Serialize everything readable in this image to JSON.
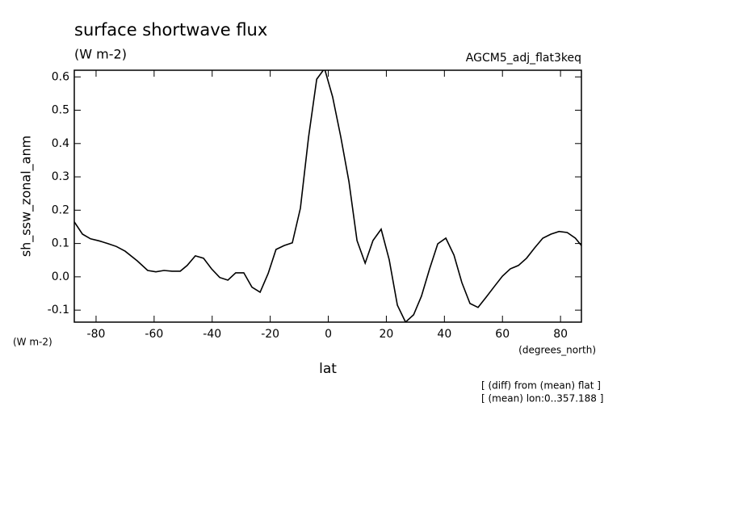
{
  "chart_data": {
    "type": "line",
    "title": "surface shortwave flux",
    "subtitle": "(W m-2)",
    "dataset": "AGCM5_adj_flat3keq",
    "y_label": "sh_ssw_zonal_anm",
    "y_units": "(W m-2)",
    "x_label": "lat",
    "x_units": "(degrees_north)",
    "notes": [
      "[ (diff) from (mean) flat ]",
      "[ (mean) lon:0..357.188 ]"
    ],
    "x": [
      -87.5,
      -84.7,
      -81.9,
      -79,
      -76,
      -73,
      -70,
      -65.8,
      -62.2,
      -59.4,
      -56.6,
      -53.8,
      -51,
      -48.6,
      -45.8,
      -43,
      -40.2,
      -37.4,
      -34.6,
      -31.9,
      -29.1,
      -26.3,
      -23.5,
      -20.7,
      -18,
      -15.2,
      -12.4,
      -9.6,
      -6.8,
      -4,
      -1.3,
      1.5,
      4.3,
      7.1,
      9.9,
      12.7,
      15.4,
      18.2,
      21,
      23.8,
      26.6,
      29.4,
      32.1,
      34.9,
      37.7,
      40.5,
      43.3,
      46,
      48.8,
      51.6,
      54.4,
      57.2,
      60,
      62.7,
      65.5,
      68.3,
      71.1,
      73.9,
      76.7,
      79.5,
      82.3,
      85.1,
      87.2
    ],
    "series": [
      {
        "color": "#000000",
        "values": [
          0.165,
          0.128,
          0.114,
          0.108,
          0.1,
          0.091,
          0.077,
          0.048,
          0.019,
          0.015,
          0.019,
          0.017,
          0.017,
          0.034,
          0.063,
          0.056,
          0.024,
          -0.002,
          -0.01,
          0.012,
          0.012,
          -0.031,
          -0.046,
          0.01,
          0.082,
          0.094,
          0.102,
          0.206,
          0.419,
          0.593,
          0.625,
          0.54,
          0.42,
          0.286,
          0.109,
          0.041,
          0.109,
          0.143,
          0.051,
          -0.085,
          -0.136,
          -0.114,
          -0.058,
          0.024,
          0.099,
          0.116,
          0.065,
          -0.017,
          -0.08,
          -0.092,
          -0.061,
          -0.029,
          0.002,
          0.024,
          0.034,
          0.056,
          0.087,
          0.116,
          0.128,
          0.136,
          0.133,
          0.116,
          0.094
        ]
      }
    ],
    "xlim": [
      -87.5,
      87.2
    ],
    "ylim": [
      -0.136,
      0.62
    ],
    "xticks": [
      -80,
      -60,
      -40,
      -20,
      0,
      20,
      40,
      60,
      80
    ],
    "yticks": [
      {
        "value": -0.1,
        "label": "-0.1"
      },
      {
        "value": 0,
        "label": "0.0"
      },
      0.1,
      0.2,
      0.3,
      0.4,
      0.5,
      0.6
    ]
  }
}
